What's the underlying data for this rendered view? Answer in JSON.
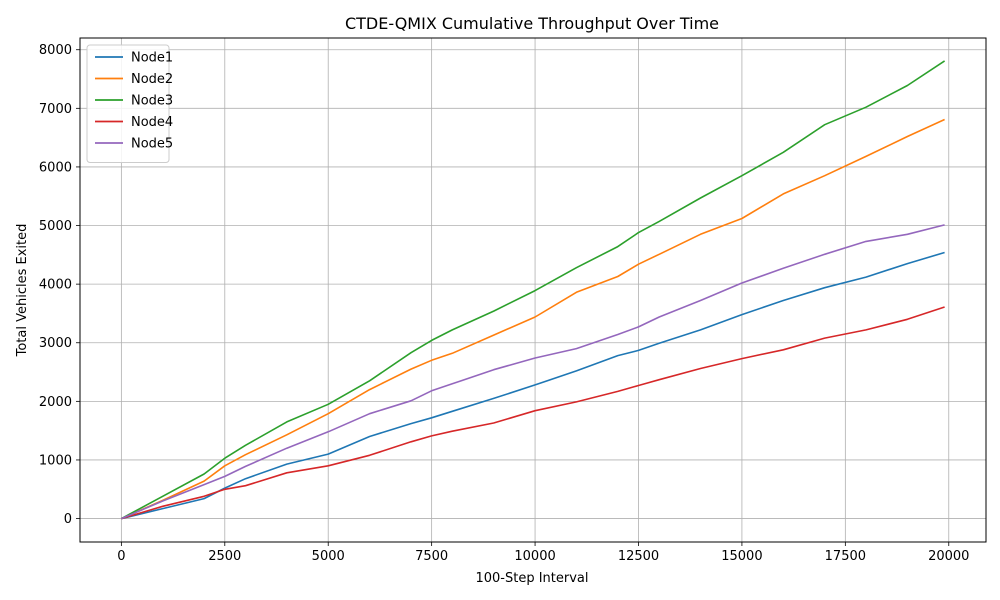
{
  "chart_data": {
    "type": "line",
    "title": "CTDE-QMIX Cumulative Throughput Over Time",
    "xlabel": "100-Step Interval",
    "ylabel": "Total Vehicles Exited",
    "xlim": [
      -1000,
      20900
    ],
    "ylim": [
      -400,
      8200
    ],
    "xticks": [
      0,
      2500,
      5000,
      7500,
      10000,
      12500,
      15000,
      17500,
      20000
    ],
    "yticks": [
      0,
      1000,
      2000,
      3000,
      4000,
      5000,
      6000,
      7000,
      8000
    ],
    "grid": true,
    "legend_position": "top-left",
    "x": [
      0,
      1000,
      2000,
      2500,
      3000,
      4000,
      5000,
      6000,
      7000,
      7500,
      8000,
      9000,
      10000,
      11000,
      12000,
      12500,
      13000,
      14000,
      15000,
      16000,
      17000,
      18000,
      19000,
      19900
    ],
    "series": [
      {
        "name": "Node1",
        "color": "#1f77b4",
        "values": [
          0,
          170,
          340,
          520,
          680,
          930,
          1100,
          1400,
          1620,
          1720,
          1830,
          2050,
          2280,
          2520,
          2780,
          2870,
          2990,
          3220,
          3480,
          3720,
          3940,
          4120,
          4350,
          4540
        ]
      },
      {
        "name": "Node2",
        "color": "#ff7f0e",
        "values": [
          0,
          310,
          640,
          900,
          1090,
          1430,
          1790,
          2200,
          2550,
          2700,
          2820,
          3130,
          3440,
          3860,
          4130,
          4340,
          4510,
          4850,
          5120,
          5540,
          5850,
          6180,
          6520,
          6810
        ]
      },
      {
        "name": "Node3",
        "color": "#2ca02c",
        "values": [
          0,
          380,
          760,
          1030,
          1250,
          1650,
          1950,
          2350,
          2830,
          3040,
          3220,
          3540,
          3890,
          4280,
          4640,
          4880,
          5070,
          5470,
          5850,
          6250,
          6720,
          7020,
          7390,
          7810
        ]
      },
      {
        "name": "Node4",
        "color": "#d62728",
        "values": [
          0,
          210,
          380,
          500,
          560,
          780,
          900,
          1080,
          1310,
          1410,
          1490,
          1630,
          1840,
          1990,
          2170,
          2270,
          2370,
          2560,
          2730,
          2880,
          3080,
          3220,
          3400,
          3610
        ]
      },
      {
        "name": "Node5",
        "color": "#9467bd",
        "values": [
          0,
          300,
          580,
          720,
          890,
          1200,
          1480,
          1790,
          2010,
          2180,
          2300,
          2540,
          2740,
          2900,
          3140,
          3270,
          3440,
          3720,
          4020,
          4270,
          4510,
          4730,
          4850,
          5010
        ]
      }
    ]
  }
}
